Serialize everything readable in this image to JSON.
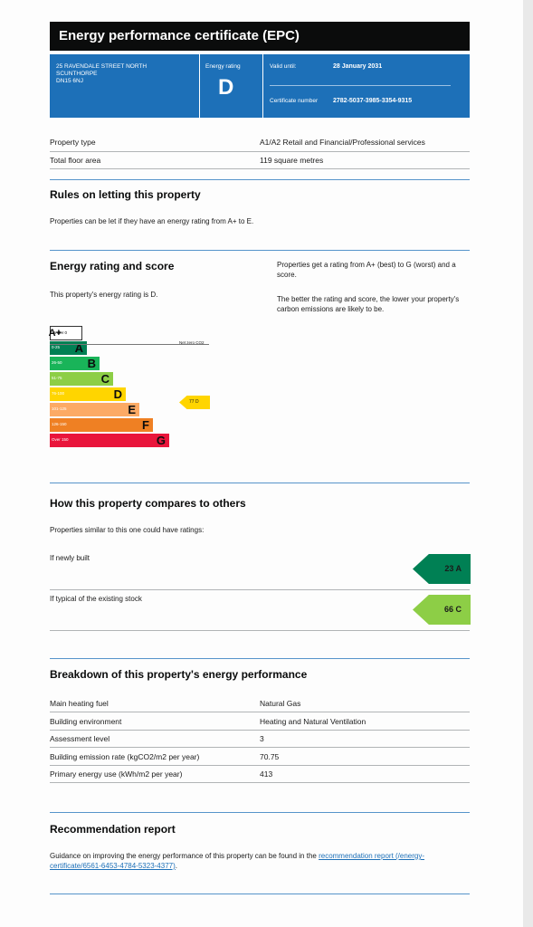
{
  "header": {
    "title": "Energy performance certificate (EPC)"
  },
  "summary": {
    "address_line1": "25 Ravendale Street North",
    "address_line2": "Scunthorpe",
    "address_line3": "DN15 6NJ",
    "rating_label": "Energy rating",
    "rating": "D",
    "valid_label": "Valid until:",
    "valid_until": "28 January 2031",
    "cert_label": "Certificate number",
    "cert_number": "2782-5037-3985-3354-9315"
  },
  "details": {
    "property_type_label": "Property type",
    "property_type": "A1/A2 Retail and Financial/Professional services",
    "floor_area_label": "Total floor area",
    "floor_area": "119 square metres"
  },
  "letting": {
    "heading": "Rules on letting this property",
    "text": "Properties can be let if they have an energy rating from A+ to E."
  },
  "energy_rating": {
    "heading": "Energy rating and score",
    "text": "This property's energy rating is D.",
    "side_text_1": "Properties get a rating from A+ (best) to G (worst) and a score.",
    "side_text_2": "The better the rating and score, the lower your property's carbon emissions are likely to be.",
    "net_zero_label": "Net zero CO2",
    "score_label": "77 D",
    "bands": [
      {
        "range": "Under 0",
        "letter": "A+",
        "color": "#ffffff",
        "width": 0.27
      },
      {
        "range": "0-25",
        "letter": "A",
        "color": "#008054",
        "width": 0.31
      },
      {
        "range": "26-50",
        "letter": "B",
        "color": "#19b459",
        "width": 0.42
      },
      {
        "range": "51-75",
        "letter": "C",
        "color": "#8dce46",
        "width": 0.53
      },
      {
        "range": "76-100",
        "letter": "D",
        "color": "#ffd500",
        "width": 0.64
      },
      {
        "range": "101-125",
        "letter": "E",
        "color": "#fcaa65",
        "width": 0.75
      },
      {
        "range": "126-150",
        "letter": "F",
        "color": "#ef8023",
        "width": 0.86
      },
      {
        "range": "Over 150",
        "letter": "G",
        "color": "#e9153b",
        "width": 1.0
      }
    ]
  },
  "compare": {
    "heading": "How this property compares to others",
    "intro": "Properties similar to this one could have ratings:",
    "newly_built_label": "If newly built",
    "newly_built_value": "23 A",
    "newly_built_color": "#008054",
    "typical_label": "If typical of the existing stock",
    "typical_value": "66 C",
    "typical_color": "#8dce46"
  },
  "breakdown": {
    "heading": "Breakdown of this property's energy performance",
    "rows": [
      {
        "label": "Main heating fuel",
        "value": "Natural Gas"
      },
      {
        "label": "Building environment",
        "value": "Heating and Natural Ventilation"
      },
      {
        "label": "Assessment level",
        "value": "3"
      },
      {
        "label": "Building emission rate (kgCO2/m2 per year)",
        "value": "70.75"
      },
      {
        "label": "Primary energy use (kWh/m2 per year)",
        "value": "413"
      }
    ]
  },
  "recommendation": {
    "heading": "Recommendation report",
    "text": "Guidance on improving the energy performance of this property can be found in the",
    "link_text": "recommendation report (/energy-certificate/6561-6453-4784-5323-4377)",
    "end": "."
  }
}
